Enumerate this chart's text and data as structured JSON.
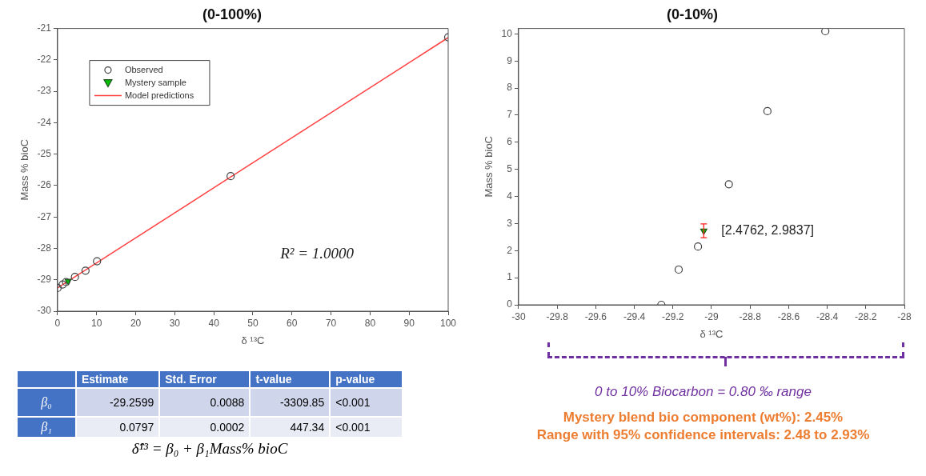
{
  "chart_data": [
    {
      "type": "scatter",
      "title": "(0-100%)",
      "xlabel": "δ ¹³C",
      "ylabel": "Mass % bioC",
      "xlim": [
        0,
        100
      ],
      "xticks": [
        0,
        10,
        20,
        30,
        40,
        50,
        60,
        70,
        80,
        90,
        100
      ],
      "ylim": [
        -30,
        -21
      ],
      "yticks": [
        -30,
        -29,
        -28,
        -27,
        -26,
        -25,
        -24,
        -23,
        -22,
        -21
      ],
      "grid": false,
      "legend": "top left",
      "annotations": [
        "R² = 1.0000"
      ],
      "series": [
        {
          "name": "Observed",
          "type": "scatter",
          "marker": "circle",
          "color": "#404040",
          "x": [
            0,
            1.3,
            2.15,
            4.45,
            7.15,
            10.1,
            44.3,
            100
          ],
          "values": [
            -29.26,
            -29.15,
            -29.07,
            -28.91,
            -28.71,
            -28.41,
            -25.7,
            -21.28
          ]
        },
        {
          "name": "Mystery sample",
          "type": "scatter",
          "marker": "triangle",
          "color": "#00c000",
          "x": [
            2.7
          ],
          "values": [
            -29.04
          ]
        },
        {
          "name": "Model predictions",
          "type": "line",
          "marker": "none",
          "color": "#ff4040",
          "x": [
            0,
            100
          ],
          "values": [
            -29.26,
            -21.29
          ]
        }
      ]
    },
    {
      "type": "scatter",
      "title": "(0-10%)",
      "xlabel": "δ ¹³C",
      "ylabel": "Mass % bioC",
      "xlim": [
        -30,
        -28
      ],
      "xticks": [
        -30,
        -29.8,
        -29.6,
        -29.4,
        -29.2,
        -29,
        -28.8,
        -28.6,
        -28.4,
        -28.2,
        -28
      ],
      "ylim": [
        0,
        10.2
      ],
      "yticks": [
        0,
        1,
        2,
        3,
        4,
        5,
        6,
        7,
        8,
        9,
        10
      ],
      "grid": false,
      "annotations": [
        {
          "text": "[2.4762, 2.9837]",
          "x": -29.04,
          "y": 2.73
        },
        "0 to 10% Biocarbon = 0.80 ‰ range",
        "Mystery blend bio component (wt%): 2.45%",
        "Range with 95% confidence intervals: 2.48 to 2.93%"
      ],
      "series": [
        {
          "type": "scatter",
          "marker": "circle",
          "color": "#404040",
          "x": [
            -29.26,
            -29.17,
            -29.07,
            -28.91,
            -28.71,
            -28.41
          ],
          "values": [
            0,
            1.3,
            2.15,
            4.45,
            7.15,
            10.1
          ]
        },
        {
          "type": "scatter",
          "marker": "triangle",
          "color": "#00c000",
          "x": [
            -29.04
          ],
          "values": [
            2.73
          ],
          "errors": [
            [
              2.4762,
              2.9837
            ]
          ]
        }
      ]
    },
    {
      "type": "other",
      "categories": [
        "Estimate",
        "Std. Error",
        "t-value",
        "p-value"
      ],
      "y_categories": [
        "β₀",
        "β₁"
      ],
      "cell_labels": [
        [
          "-29.2599",
          "0.0088",
          "-3309.85",
          "<0.001"
        ],
        [
          "0.0797",
          "0.0002",
          "447.34",
          "<0.001"
        ]
      ],
      "annotations": [
        "δ̂¹³ = β₀ + β₁Mass% bioC"
      ]
    }
  ]
}
